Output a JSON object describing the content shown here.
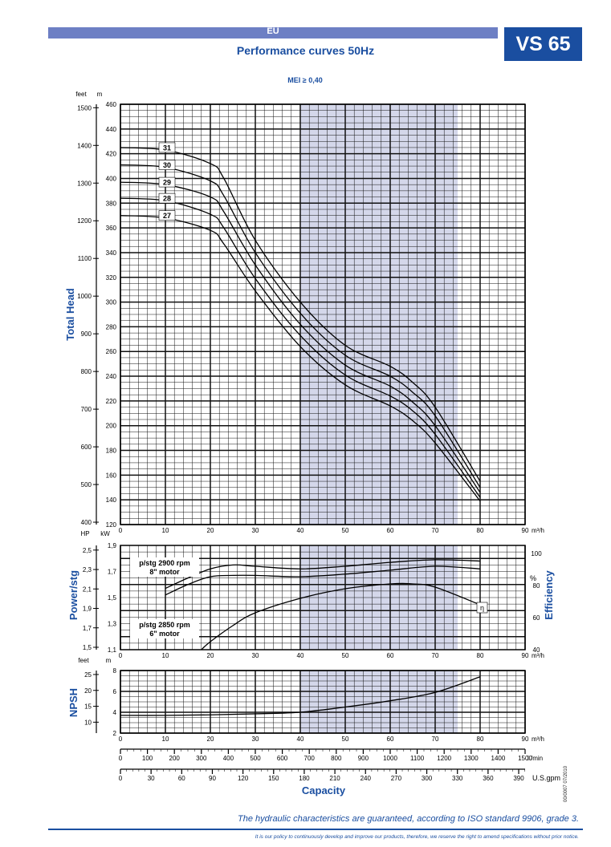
{
  "header": {
    "region": "EU",
    "model": "VS 65",
    "title": "Performance curves 50Hz",
    "mei": "MEI ≥ 0,40"
  },
  "footer": {
    "guarantee": "The hydraulic characteristics are guaranteed, according to ISO standard 9906, grade 3.",
    "policy": "It is our policy to continuously develop and improve our products, therefore, we reserve the right to amend specifications without prior notice.",
    "docref": "00/0007 07/2010"
  },
  "colors": {
    "brand": "#1a4ea0",
    "band": "#d4d7ea",
    "grid": "#111111",
    "curve": "#000000",
    "bar": "#6d7fc4"
  },
  "chart_data": [
    {
      "type": "line",
      "name": "head",
      "ylabel": "Total Head",
      "y_unit": "m",
      "y2_unit": "feet",
      "x_unit": "m³/h",
      "xlim": [
        0,
        90
      ],
      "ylim": [
        120,
        460
      ],
      "x_ticks": [
        0,
        10,
        20,
        30,
        40,
        50,
        60,
        70,
        80,
        90
      ],
      "y_ticks": [
        120,
        140,
        160,
        180,
        200,
        220,
        240,
        260,
        280,
        300,
        320,
        340,
        360,
        380,
        400,
        420,
        440,
        460
      ],
      "feet_ticks": [
        400,
        500,
        600,
        700,
        800,
        900,
        1000,
        1100,
        1200,
        1300,
        1400,
        1500
      ],
      "highlight_x": [
        40,
        75
      ],
      "series": [
        {
          "name": "31",
          "x": [
            0,
            10,
            20,
            23,
            30,
            40,
            50,
            60,
            65,
            70,
            80
          ],
          "y": [
            425,
            423,
            412,
            400,
            350,
            300,
            265,
            248,
            235,
            215,
            155
          ]
        },
        {
          "name": "30",
          "x": [
            0,
            10,
            20,
            23,
            30,
            40,
            50,
            60,
            65,
            70,
            80
          ],
          "y": [
            411,
            409,
            398,
            386,
            340,
            291,
            257,
            240,
            227,
            208,
            150
          ]
        },
        {
          "name": "29",
          "x": [
            0,
            10,
            20,
            23,
            30,
            40,
            50,
            60,
            65,
            70,
            80
          ],
          "y": [
            397,
            395,
            385,
            373,
            330,
            282,
            249,
            232,
            219,
            200,
            146
          ]
        },
        {
          "name": "28",
          "x": [
            0,
            10,
            20,
            23,
            30,
            40,
            50,
            60,
            65,
            70,
            80
          ],
          "y": [
            384,
            382,
            371,
            360,
            319,
            273,
            241,
            224,
            212,
            193,
            142
          ]
        },
        {
          "name": "27",
          "x": [
            0,
            10,
            20,
            23,
            30,
            40,
            50,
            60,
            65,
            70,
            80
          ],
          "y": [
            370,
            368,
            358,
            347,
            309,
            264,
            233,
            216,
            204,
            186,
            139
          ]
        }
      ]
    },
    {
      "type": "line",
      "name": "power-efficiency",
      "ylabel": "Power/stg",
      "y2label": "Efficiency",
      "y_unit": "kW",
      "y2_unit": "HP",
      "y3_unit": "%",
      "x_unit": "m³/h",
      "xlim": [
        0,
        90
      ],
      "ylim": [
        1.1,
        1.9
      ],
      "x_ticks": [
        0,
        10,
        20,
        30,
        40,
        50,
        60,
        70,
        80,
        90
      ],
      "y_ticks": [
        1.1,
        1.3,
        1.5,
        1.7,
        1.9
      ],
      "y_tick_labels": [
        "1,1",
        "1,3",
        "1,5",
        "1,7",
        "1,9"
      ],
      "hp_ticks": [
        1.5,
        1.7,
        1.9,
        2.1,
        2.3,
        2.5
      ],
      "hp_tick_labels": [
        "1,5",
        "1,7",
        "1,9",
        "2,1",
        "2,3",
        "2,5"
      ],
      "eff_ticks": [
        40,
        60,
        80,
        100
      ],
      "eff_lim": [
        40,
        105
      ],
      "annotations": [
        "p/stg 2900 rpm\n8\" motor",
        "p/stg 2850 rpm\n6\" motor",
        "η"
      ],
      "series": [
        {
          "name": "p/stg 2900 rpm",
          "x": [
            10,
            15,
            20,
            25,
            30,
            40,
            50,
            60,
            70,
            80
          ],
          "y": [
            1.57,
            1.65,
            1.72,
            1.75,
            1.74,
            1.72,
            1.74,
            1.77,
            1.79,
            1.78
          ]
        },
        {
          "name": "p/stg 2850 rpm",
          "x": [
            10,
            15,
            20,
            25,
            30,
            40,
            50,
            60,
            70,
            80
          ],
          "y": [
            1.52,
            1.6,
            1.66,
            1.67,
            1.67,
            1.66,
            1.68,
            1.71,
            1.74,
            1.72
          ]
        },
        {
          "name": "η",
          "axis": "eff",
          "x": [
            18,
            20,
            25,
            30,
            40,
            50,
            60,
            65,
            70,
            80
          ],
          "y": [
            40,
            45,
            55,
            63,
            72,
            78,
            81,
            81,
            79,
            68
          ]
        }
      ]
    },
    {
      "type": "line",
      "name": "npsh",
      "ylabel": "NPSH",
      "y_unit": "m",
      "y2_unit": "feet",
      "x_unit": "m³/h",
      "xlim": [
        0,
        90
      ],
      "ylim": [
        2,
        8
      ],
      "x_ticks": [
        0,
        10,
        20,
        30,
        40,
        50,
        60,
        70,
        80,
        90
      ],
      "y_ticks": [
        2,
        4,
        6,
        8
      ],
      "feet_ticks": [
        10,
        15,
        20,
        25
      ],
      "series": [
        {
          "name": "NPSH",
          "x": [
            0,
            10,
            20,
            30,
            40,
            50,
            60,
            70,
            80
          ],
          "y": [
            3.7,
            3.7,
            3.75,
            3.85,
            4.0,
            4.5,
            5.1,
            5.9,
            7.4
          ]
        }
      ]
    },
    {
      "type": "axis",
      "name": "capacity",
      "xlabel": "Capacity",
      "lmin_unit": "l /min",
      "lmin_ticks": [
        0,
        100,
        200,
        300,
        400,
        500,
        600,
        700,
        800,
        900,
        1000,
        1100,
        1200,
        1300,
        1400,
        1500
      ],
      "gpm_unit": "U.S.gpm",
      "gpm_ticks": [
        0,
        30,
        60,
        90,
        120,
        150,
        180,
        210,
        240,
        270,
        300,
        330,
        360,
        390
      ]
    }
  ]
}
